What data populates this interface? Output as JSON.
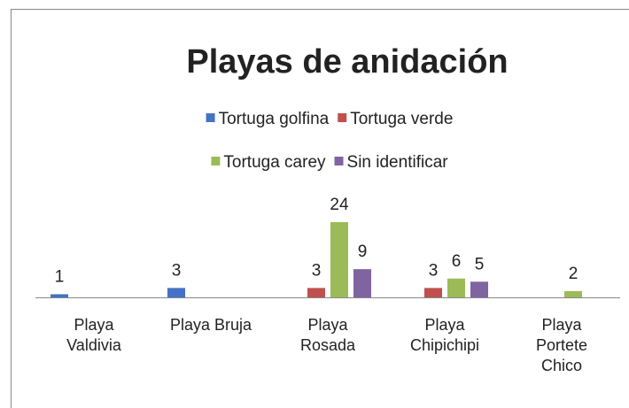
{
  "chart_data": {
    "type": "bar",
    "title": "Playas de anidación",
    "categories": [
      "Playa Valdivia",
      "Playa Bruja",
      "Playa Rosada",
      "Playa Chipichipi",
      "Playa Portete Chico"
    ],
    "series": [
      {
        "name": "Tortuga golfina",
        "color": "#4472c4",
        "values": [
          1,
          3,
          null,
          null,
          null
        ]
      },
      {
        "name": "Tortuga verde",
        "color": "#c0504d",
        "values": [
          null,
          null,
          3,
          3,
          null
        ]
      },
      {
        "name": "Tortuga carey",
        "color": "#9bbb59",
        "values": [
          null,
          null,
          24,
          6,
          2
        ]
      },
      {
        "name": "Sin identificar",
        "color": "#8064a2",
        "values": [
          null,
          null,
          9,
          5,
          null
        ]
      }
    ],
    "legend": "top"
  }
}
